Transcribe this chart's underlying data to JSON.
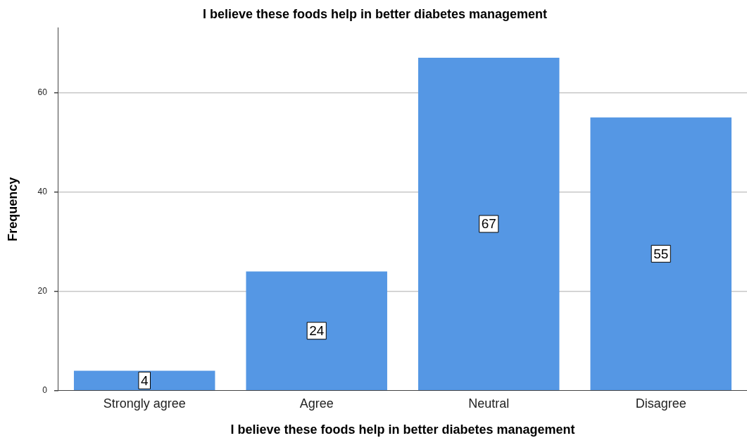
{
  "chart_data": {
    "type": "bar",
    "title": "I believe these foods help in better diabetes management",
    "xlabel": "I believe these foods help in better diabetes management",
    "ylabel": "Frequency",
    "categories": [
      "Strongly agree",
      "Agree",
      "Neutral",
      "Disagree"
    ],
    "values": [
      4,
      24,
      67,
      55
    ],
    "color": "#5597e4",
    "ylim": [
      0,
      73
    ],
    "yticks": [
      0,
      20,
      40,
      60
    ],
    "grid": "y",
    "data_labels": true,
    "legend": false
  }
}
